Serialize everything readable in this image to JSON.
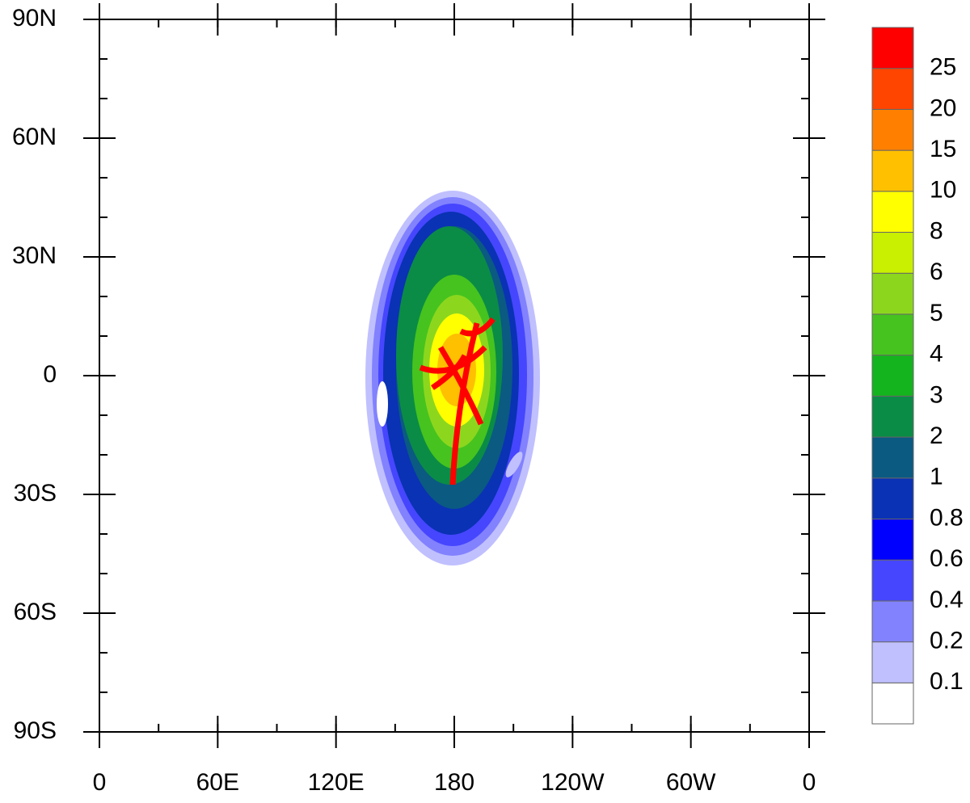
{
  "map": {
    "x_labels": [
      "0",
      "60E",
      "120E",
      "180",
      "120W",
      "60W",
      "0"
    ],
    "y_labels": [
      "90N",
      "60N",
      "30N",
      "0",
      "30S",
      "60S",
      "90S"
    ],
    "colorbar": {
      "levels": [
        "0.1",
        "0.2",
        "0.4",
        "0.6",
        "0.8",
        "1",
        "2",
        "3",
        "4",
        "5",
        "6",
        "8",
        "10",
        "15",
        "20",
        "25"
      ],
      "colors": [
        "#ffffff",
        "#c0c0ff",
        "#8282ff",
        "#4646ff",
        "#0000ff",
        "#0a32b4",
        "#0a5a82",
        "#0a8c46",
        "#14b41e",
        "#46c31e",
        "#8cd71e",
        "#c8f000",
        "#ffff00",
        "#ffc000",
        "#ff8000",
        "#ff4500",
        "#ff0000"
      ]
    }
  }
}
